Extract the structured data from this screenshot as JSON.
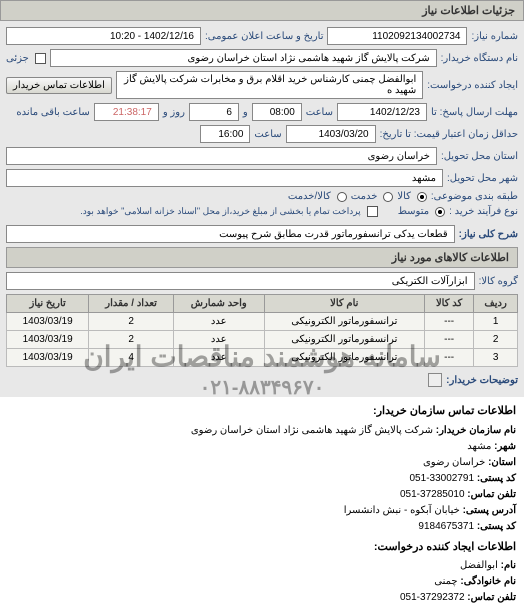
{
  "section1_title": "جزئیات اطلاعات نیاز",
  "niaz_no_label": "شماره نیاز:",
  "niaz_no": "1102092134002734",
  "date_label": "تاریخ و ساعت اعلان عمومی:",
  "date_val": "1402/12/16 - 10:20",
  "buyer_org_label": "نام دستگاه خریدار:",
  "buyer_org": "شرکت پالایش گاز شهید هاشمی نژاد   استان خراسان رضوی",
  "partial_label": "جزئی",
  "requester_label": "ایجاد کننده درخواست:",
  "requester": "ابوالفضل چمنی کارشناس خرید اقلام برق و مخابرات شرکت پالایش گاز شهید ه",
  "contact_btn": "اطلاعات تماس خریدار",
  "resp_until_label": "مهلت ارسال پاسخ: تا",
  "resp_date": "1402/12/23",
  "time_label": "ساعت",
  "resp_time": "08:00",
  "and_label": "و",
  "days_val": "6",
  "day_label": "روز و",
  "remain_time": "21:38:17",
  "remain_label": "ساعت باقی مانده",
  "valid_from_label": "حداقل زمان اعتبار قیمت: تا تاریخ:",
  "valid_date": "1403/03/20",
  "valid_time": "16:00",
  "delivery_province_label": "استان محل تحویل:",
  "delivery_province": "خراسان رضوی",
  "delivery_city_label": "شهر محل تحویل:",
  "delivery_city": "مشهد",
  "subject_cat_label": "طبقه بندی موضوعی:",
  "opt_kala": "کالا",
  "opt_khadamat": "خدمت",
  "opt_kalakhadamat": "کالا/خدمت",
  "process_type_label": "نوع فرآیند خرید :",
  "opt_medium": "متوسط",
  "process_note": "پرداخت تمام یا بخشی از مبلغ خرید،از محل \"اسناد خزانه اسلامی\" خواهد بود.",
  "desc_label": "شرح کلی نیاز:",
  "desc_val": "قطعات یدکی ترانسفورماتور قدرت مطابق شرح پیوست",
  "goods_header": "اطلاعات کالاهای مورد نیاز",
  "group_label": "گروه کالا:",
  "group_val": "ابزارآلات الکتریکی",
  "columns": [
    "ردیف",
    "کد کالا",
    "نام کالا",
    "واحد شمارش",
    "تعداد / مقدار",
    "تاریخ نیاز"
  ],
  "rows": [
    [
      "1",
      "---",
      "ترانسفورماتور الکترونیکی",
      "عدد",
      "2",
      "1403/03/19"
    ],
    [
      "2",
      "---",
      "ترانسفورماتور الکترونیکی",
      "عدد",
      "2",
      "1403/03/19"
    ],
    [
      "3",
      "---",
      "ترانسفورماتور الکترونیکی",
      "عدد",
      "4",
      "1403/03/19"
    ]
  ],
  "attach_label": "توضیحات خریدار:",
  "contact_hd1": "اطلاعات تماس سازمان خریدار:",
  "c_org_label": "نام سازمان خریدار:",
  "c_org": "شرکت پالایش گاز شهید هاشمی نژاد استان خراسان رضوی",
  "c_city_label": "شهر:",
  "c_city": "مشهد",
  "c_province_label": "استان:",
  "c_province": "خراسان رضوی",
  "c_post_label": "کد پستی:",
  "c_post": "33002791-051",
  "c_phone_label": "تلفن تماس:",
  "c_phone": "37285010-051",
  "c_addr_label": "آدرس پستی:",
  "c_addr": "خیابان آبکوه - نبش دانشسرا",
  "c_post2_label": "کد پستی:",
  "c_post2": "9184675371",
  "contact_hd2": "اطلاعات ایجاد کننده درخواست:",
  "c_fname_label": "نام:",
  "c_fname": "ابوالفضل",
  "c_lname_label": "نام خانوادگی:",
  "c_lname": "چمنی",
  "c_phone2_label": "تلفن تماس:",
  "c_phone2": "37292372-051",
  "watermark_text": "سامانه هوشمند مناقصات ایران",
  "watermark_phone": "۰۲۱-۸۸۳۴۹۶۷۰"
}
